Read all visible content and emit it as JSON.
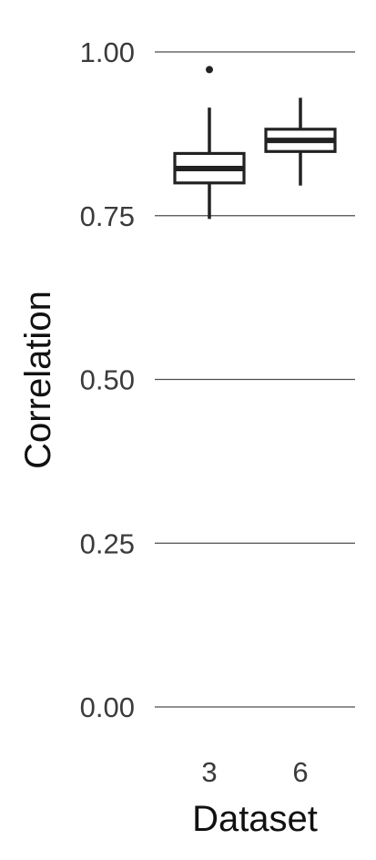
{
  "chart_data": {
    "type": "boxplot",
    "title": "",
    "xlabel": "Dataset",
    "ylabel": "Correlation",
    "ylim": [
      0.0,
      1.0
    ],
    "yticks": [
      0.0,
      0.25,
      0.5,
      0.75,
      1.0
    ],
    "ytick_labels": [
      "0.00",
      "0.25",
      "0.50",
      "0.75",
      "1.00"
    ],
    "categories": [
      "3",
      "6"
    ],
    "grid": "horizontal major",
    "boxes": [
      {
        "category": "3",
        "whisker_low": 0.745,
        "q1": 0.8,
        "median": 0.822,
        "q3": 0.845,
        "whisker_high": 0.915,
        "outliers": [
          0.973
        ]
      },
      {
        "category": "6",
        "whisker_low": 0.796,
        "q1": 0.848,
        "median": 0.865,
        "q3": 0.882,
        "whisker_high": 0.93,
        "outliers": []
      }
    ]
  }
}
